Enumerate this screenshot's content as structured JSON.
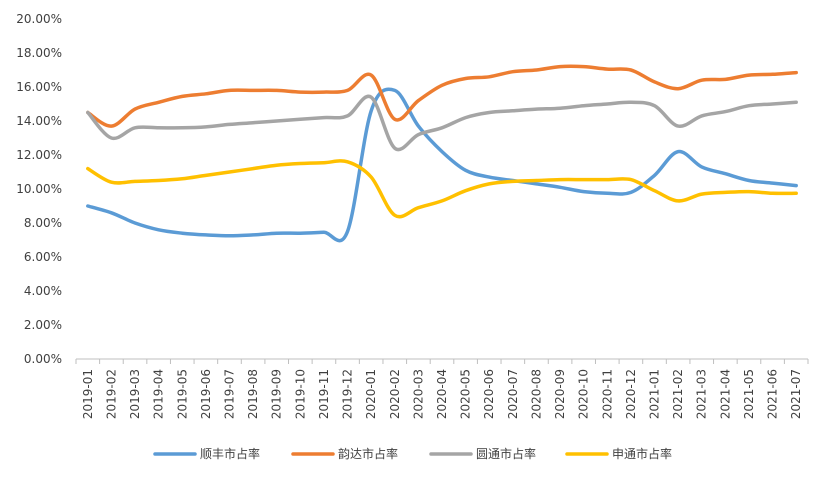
{
  "chart_data": {
    "type": "line",
    "title": "",
    "xlabel": "",
    "ylabel": "",
    "ylim": [
      0,
      20
    ],
    "yticks": [
      "0.00%",
      "2.00%",
      "4.00%",
      "6.00%",
      "8.00%",
      "10.00%",
      "12.00%",
      "14.00%",
      "16.00%",
      "18.00%",
      "20.00%"
    ],
    "grid": false,
    "legend_position": "bottom",
    "categories": [
      "2019-01",
      "2019-02",
      "2019-03",
      "2019-04",
      "2019-05",
      "2019-06",
      "2019-07",
      "2019-08",
      "2019-09",
      "2019-10",
      "2019-11",
      "2019-12",
      "2020-01",
      "2020-02",
      "2020-03",
      "2020-04",
      "2020-05",
      "2020-06",
      "2020-07",
      "2020-08",
      "2020-09",
      "2020-10",
      "2020-11",
      "2020-12",
      "2021-01",
      "2021-02",
      "2021-03",
      "2021-04",
      "2021-05",
      "2021-06",
      "2021-07"
    ],
    "series": [
      {
        "name": "顺丰市占率",
        "color": "#5B9BD5",
        "values": [
          9.0,
          8.6,
          8.0,
          7.6,
          7.4,
          7.3,
          7.25,
          7.3,
          7.4,
          7.4,
          7.45,
          7.5,
          14.6,
          15.8,
          13.7,
          12.2,
          11.1,
          10.7,
          10.5,
          10.3,
          10.1,
          9.85,
          9.75,
          9.8,
          10.8,
          12.2,
          11.3,
          10.9,
          10.5,
          10.35,
          10.2
        ]
      },
      {
        "name": "韵达市占率",
        "color": "#ED7D31",
        "values": [
          14.5,
          13.7,
          14.7,
          15.1,
          15.45,
          15.6,
          15.8,
          15.8,
          15.8,
          15.7,
          15.7,
          15.8,
          16.7,
          14.1,
          15.2,
          16.1,
          16.5,
          16.6,
          16.9,
          17.0,
          17.2,
          17.2,
          17.05,
          17.0,
          16.3,
          15.9,
          16.4,
          16.45,
          16.7,
          16.75,
          16.85
        ]
      },
      {
        "name": "圆通市占率",
        "color": "#A5A5A5",
        "values": [
          14.5,
          13.0,
          13.6,
          13.6,
          13.6,
          13.65,
          13.8,
          13.9,
          14.0,
          14.1,
          14.2,
          14.3,
          15.4,
          12.4,
          13.2,
          13.6,
          14.2,
          14.5,
          14.6,
          14.7,
          14.75,
          14.9,
          15.0,
          15.1,
          14.9,
          13.7,
          14.3,
          14.55,
          14.9,
          15.0,
          15.1
        ]
      },
      {
        "name": "申通市占率",
        "color": "#FFC000",
        "values": [
          11.2,
          10.4,
          10.45,
          10.5,
          10.6,
          10.8,
          11.0,
          11.2,
          11.4,
          11.5,
          11.55,
          11.6,
          10.7,
          8.45,
          8.9,
          9.3,
          9.9,
          10.3,
          10.45,
          10.5,
          10.55,
          10.55,
          10.55,
          10.55,
          9.9,
          9.3,
          9.7,
          9.8,
          9.85,
          9.75,
          9.75
        ]
      }
    ]
  }
}
